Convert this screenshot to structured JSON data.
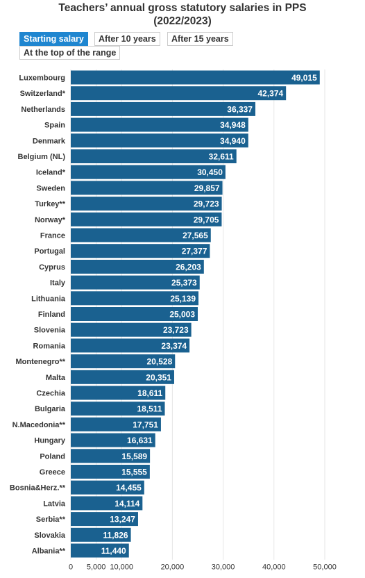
{
  "title_line1": "Teachers’ annual gross statutory salaries in PPS",
  "title_line2": "(2022/2023)",
  "tabs": [
    {
      "label": "Starting salary",
      "active": true
    },
    {
      "label": "After 10 years",
      "active": false
    },
    {
      "label": "After 15 years",
      "active": false
    },
    {
      "label": "At the top of the range",
      "active": false
    }
  ],
  "colors": {
    "bar": "#1a6190",
    "tab_active": "#1f86d0",
    "grid": "#e6e6e6",
    "text": "#333333"
  },
  "chart_data": {
    "type": "bar",
    "orientation": "horizontal",
    "title": "Teachers’ annual gross statutory salaries in PPS (2022/2023)",
    "categories": [
      "Luxembourg",
      "Switzerland*",
      "Netherlands",
      "Spain",
      "Denmark",
      "Belgium (NL)",
      "Iceland*",
      "Sweden",
      "Turkey**",
      "Norway*",
      "France",
      "Portugal",
      "Cyprus",
      "Italy",
      "Lithuania",
      "Finland",
      "Slovenia",
      "Romania",
      "Montenegro**",
      "Malta",
      "Czechia",
      "Bulgaria",
      "N.Macedonia**",
      "Hungary",
      "Poland",
      "Greece",
      "Bosnia&Herz.**",
      "Latvia",
      "Serbia**",
      "Slovakia",
      "Albania**"
    ],
    "values": [
      49015,
      42374,
      36337,
      34948,
      34940,
      32611,
      30450,
      29857,
      29723,
      29705,
      27565,
      27377,
      26203,
      25373,
      25139,
      25003,
      23723,
      23374,
      20528,
      20351,
      18611,
      18511,
      17751,
      16631,
      15589,
      15555,
      14455,
      14114,
      13247,
      11826,
      11440
    ],
    "value_labels": [
      "49,015",
      "42,374",
      "36,337",
      "34,948",
      "34,940",
      "32,611",
      "30,450",
      "29,857",
      "29,723",
      "29,705",
      "27,565",
      "27,377",
      "26,203",
      "25,373",
      "25,139",
      "25,003",
      "23,723",
      "23,374",
      "20,528",
      "20,351",
      "18,611",
      "18,511",
      "17,751",
      "16,631",
      "15,589",
      "15,555",
      "14,455",
      "14,114",
      "13,247",
      "11,826",
      "11,440"
    ],
    "xlim": [
      0,
      50000
    ],
    "xticks": [
      0,
      5000,
      10000,
      20000,
      30000,
      40000,
      50000
    ],
    "xtick_labels": [
      "0",
      "5,000",
      "10,000",
      "20,000",
      "30,000",
      "40,000",
      "50,000"
    ],
    "grid": true,
    "legend": false
  }
}
